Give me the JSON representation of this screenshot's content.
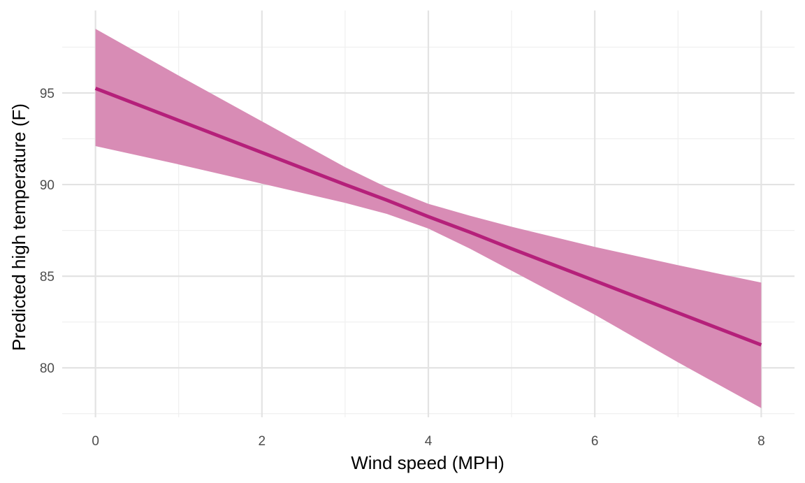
{
  "chart_data": {
    "type": "line",
    "title": "",
    "xlabel": "Wind speed (MPH)",
    "ylabel": "Predicted high temperature (F)",
    "xlim": [
      -0.4,
      8.4
    ],
    "ylim": [
      77.3,
      99.5
    ],
    "x_ticks": [
      0,
      2,
      4,
      6,
      8
    ],
    "x_tick_labels": [
      "0",
      "2",
      "4",
      "6",
      "8"
    ],
    "y_ticks": [
      80,
      85,
      90,
      95
    ],
    "y_tick_labels": [
      "80",
      "85",
      "90",
      "95"
    ],
    "x_minor_ticks": [
      1,
      3,
      5,
      7
    ],
    "y_minor_ticks": [
      77.5,
      82.5,
      87.5,
      92.5,
      97.5
    ],
    "grid": true,
    "legend": "none",
    "series": [
      {
        "x": [
          0,
          1,
          2,
          3,
          3.5,
          4,
          4.5,
          5,
          6,
          7,
          8
        ],
        "y": [
          95.25,
          93.5,
          91.75,
          90.0,
          89.15,
          88.25,
          87.4,
          86.5,
          84.75,
          83.0,
          81.25
        ],
        "lower": [
          92.1,
          91.1,
          90.05,
          89.0,
          88.4,
          87.6,
          86.5,
          85.3,
          82.9,
          80.3,
          77.8
        ],
        "upper": [
          98.5,
          95.95,
          93.45,
          90.95,
          89.85,
          88.95,
          88.3,
          87.7,
          86.6,
          85.6,
          84.65
        ],
        "color": "#b5207a",
        "band_color": "#d88cb5"
      }
    ]
  }
}
